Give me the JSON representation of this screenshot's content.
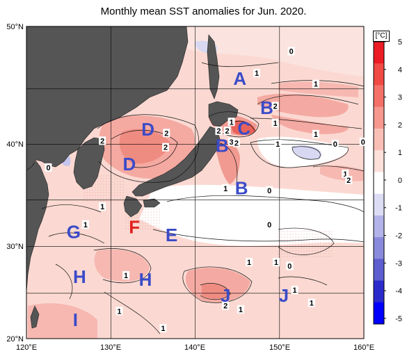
{
  "title": "Monthly mean SST anomalies for Jun. 2020.",
  "lat_labels": [
    "50°N",
    "40°N",
    "30°N",
    "20°N"
  ],
  "lon_labels": [
    "120°E",
    "130°E",
    "140°E",
    "150°E",
    "160°E"
  ],
  "colorbar": {
    "unit": "[°C]",
    "ticks": [
      "5",
      "4",
      "3",
      "2",
      "1",
      "0",
      "-1",
      "-2",
      "-3",
      "-4",
      "-5"
    ],
    "colors": [
      "#ec1c24",
      "#f04a44",
      "#f37168",
      "#f6988e",
      "#f9bfb6",
      "#fde0da",
      "#ffffff",
      "#dcdcf5",
      "#b3b3ea",
      "#8a8adc",
      "#5d5dd0",
      "#2b2bcc",
      "#0000ff"
    ]
  },
  "region_labels": [
    {
      "text": "A",
      "lon": 145.3,
      "lat": 45.8,
      "color": "#3b4bc8"
    },
    {
      "text": "B",
      "lon": 148.5,
      "lat": 43.3,
      "color": "#3b4bc8"
    },
    {
      "text": "C",
      "lon": 145.8,
      "lat": 41.5,
      "color": "#3b4bc8"
    },
    {
      "text": "B",
      "lon": 143.2,
      "lat": 39.9,
      "color": "#3b4bc8"
    },
    {
      "text": "B",
      "lon": 145.5,
      "lat": 35.9,
      "color": "#3b4bc8"
    },
    {
      "text": "D",
      "lon": 134.4,
      "lat": 41.4,
      "color": "#3b4bc8"
    },
    {
      "text": "D",
      "lon": 132.2,
      "lat": 38.2,
      "color": "#3b4bc8"
    },
    {
      "text": "F",
      "lon": 132.8,
      "lat": 32.0,
      "color": "#e3211c"
    },
    {
      "text": "E",
      "lon": 137.2,
      "lat": 31.2,
      "color": "#3b4bc8"
    },
    {
      "text": "G",
      "lon": 125.6,
      "lat": 31.5,
      "color": "#3b4bc8"
    },
    {
      "text": "H",
      "lon": 126.3,
      "lat": 26.8,
      "color": "#3b4bc8"
    },
    {
      "text": "H",
      "lon": 134.1,
      "lat": 26.5,
      "color": "#3b4bc8"
    },
    {
      "text": "J",
      "lon": 143.6,
      "lat": 24.8,
      "color": "#3b4bc8"
    },
    {
      "text": "J",
      "lon": 150.5,
      "lat": 24.8,
      "color": "#3b4bc8"
    },
    {
      "text": "I",
      "lon": 125.8,
      "lat": 22.1,
      "color": "#3b4bc8"
    }
  ],
  "contour_labels": [
    {
      "text": "0",
      "lon": 151.4,
      "lat": 48.0
    },
    {
      "text": "1",
      "lon": 147.3,
      "lat": 46.2
    },
    {
      "text": "1",
      "lon": 154.3,
      "lat": 45.3
    },
    {
      "text": "2",
      "lon": 149.5,
      "lat": 43.4
    },
    {
      "text": "1",
      "lon": 149.5,
      "lat": 41.9
    },
    {
      "text": "1",
      "lon": 144.3,
      "lat": 42.0
    },
    {
      "text": "2",
      "lon": 142.8,
      "lat": 41.2
    },
    {
      "text": "2",
      "lon": 143.8,
      "lat": 41.2
    },
    {
      "text": "3",
      "lon": 144.3,
      "lat": 40.2
    },
    {
      "text": "2",
      "lon": 144.9,
      "lat": 40.1
    },
    {
      "text": "1",
      "lon": 149.8,
      "lat": 40.0
    },
    {
      "text": "1",
      "lon": 154.3,
      "lat": 40.9
    },
    {
      "text": "0",
      "lon": 156.6,
      "lat": 40.0
    },
    {
      "text": "0",
      "lon": 159.9,
      "lat": 40.2
    },
    {
      "text": "2",
      "lon": 129.0,
      "lat": 40.3
    },
    {
      "text": "2",
      "lon": 136.6,
      "lat": 41.0
    },
    {
      "text": "2",
      "lon": 136.5,
      "lat": 39.7
    },
    {
      "text": "0",
      "lon": 122.6,
      "lat": 37.8
    },
    {
      "text": "1",
      "lon": 157.8,
      "lat": 37.2
    },
    {
      "text": "2",
      "lon": 158.2,
      "lat": 36.6
    },
    {
      "text": "1",
      "lon": 143.6,
      "lat": 35.8
    },
    {
      "text": "0",
      "lon": 148.8,
      "lat": 35.6
    },
    {
      "text": "1",
      "lon": 129.0,
      "lat": 34.0
    },
    {
      "text": "0",
      "lon": 148.8,
      "lat": 32.2
    },
    {
      "text": "1",
      "lon": 127.0,
      "lat": 32.2
    },
    {
      "text": "1",
      "lon": 146.4,
      "lat": 28.3
    },
    {
      "text": "1",
      "lon": 149.6,
      "lat": 28.3
    },
    {
      "text": "0",
      "lon": 151.2,
      "lat": 27.9
    },
    {
      "text": "1",
      "lon": 131.8,
      "lat": 26.9
    },
    {
      "text": "1",
      "lon": 151.8,
      "lat": 25.3
    },
    {
      "text": "2",
      "lon": 143.6,
      "lat": 23.6
    },
    {
      "text": "1",
      "lon": 153.8,
      "lat": 23.9
    },
    {
      "text": "1",
      "lon": 145.4,
      "lat": 23.2
    },
    {
      "text": "1",
      "lon": 131.0,
      "lat": 23.0
    },
    {
      "text": "1",
      "lon": 136.2,
      "lat": 21.1
    }
  ]
}
